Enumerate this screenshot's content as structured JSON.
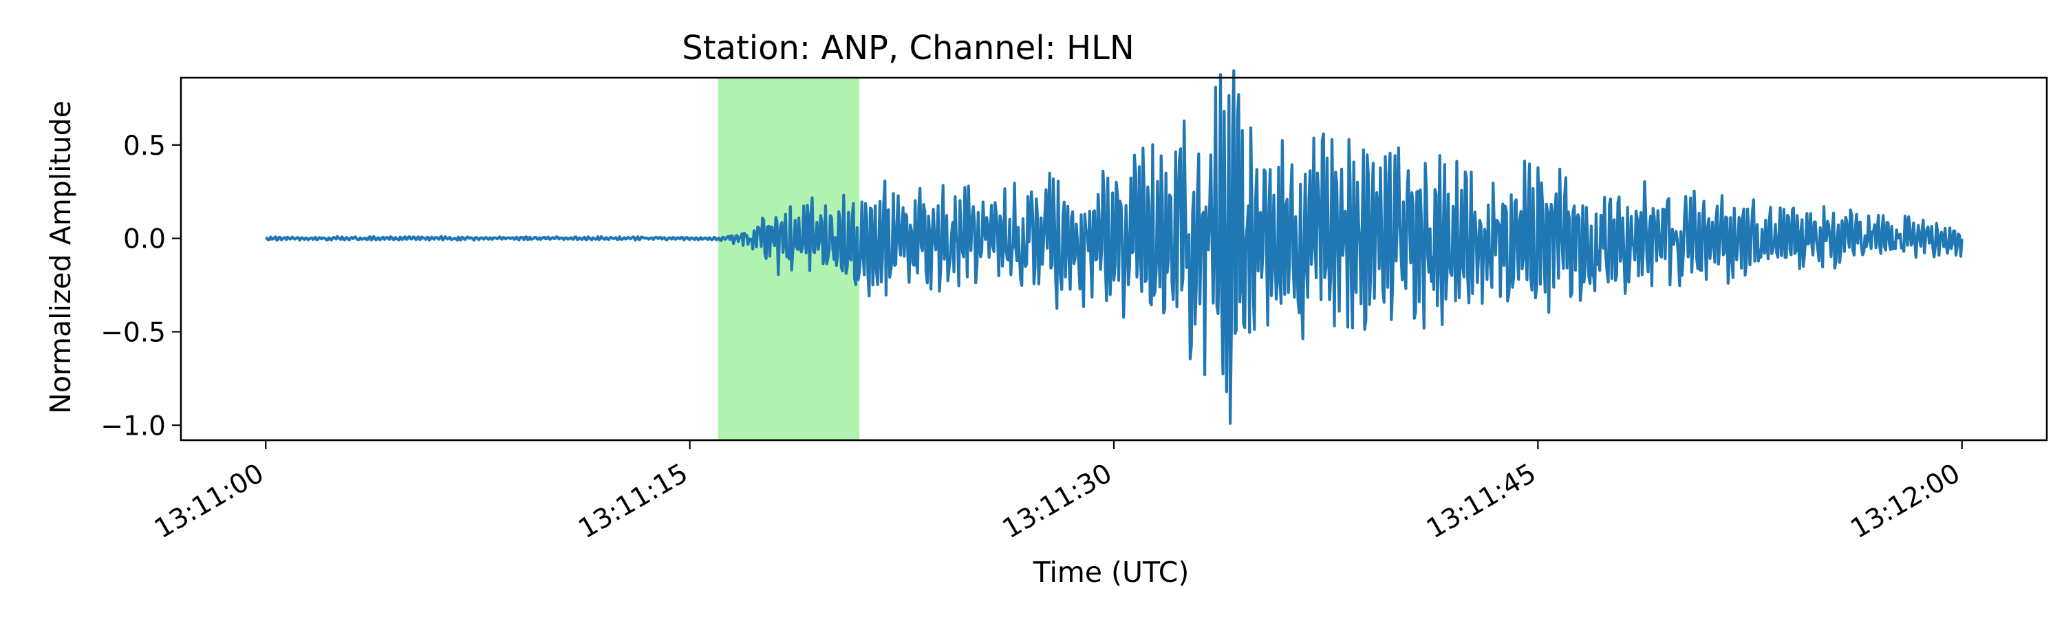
{
  "chart_data": {
    "type": "line",
    "title": "Station: ANP, Channel: HLN",
    "xlabel": "Time (UTC)",
    "ylabel": "Normalized Amplitude",
    "x_range": [
      "13:11:00",
      "13:12:00"
    ],
    "xlim": [
      "13:10:57",
      "13:12:03"
    ],
    "ylim": [
      -1.08,
      0.86
    ],
    "x_ticks": [
      "13:11:00",
      "13:11:15",
      "13:11:30",
      "13:11:45",
      "13:12:00"
    ],
    "y_ticks": [
      0.5,
      0.0,
      -0.5,
      -1.0
    ],
    "y_tick_labels": [
      "0.5",
      "0.0",
      "−0.5",
      "−1.0"
    ],
    "grid": false,
    "legend": "none",
    "highlight_window": {
      "start": "13:11:16",
      "end": "13:11:21",
      "color": "#b2f2b0"
    },
    "series": [
      {
        "color": "#1f77b4",
        "envelope": [
          {
            "t": "13:11:00",
            "amp": 0.01
          },
          {
            "t": "13:11:16",
            "amp": 0.01
          },
          {
            "t": "13:11:17",
            "amp": 0.05
          },
          {
            "t": "13:11:18",
            "amp": 0.2
          },
          {
            "t": "13:11:20",
            "amp": 0.25
          },
          {
            "t": "13:11:21",
            "amp": 0.35
          },
          {
            "t": "13:11:25",
            "amp": 0.32
          },
          {
            "t": "13:11:29",
            "amp": 0.4
          },
          {
            "t": "13:11:31",
            "amp": 0.55
          },
          {
            "t": "13:11:33",
            "amp": 0.75
          },
          {
            "t": "13:11:34",
            "amp": 1.0
          },
          {
            "t": "13:11:35",
            "amp": 0.6
          },
          {
            "t": "13:11:40",
            "amp": 0.55
          },
          {
            "t": "13:11:45",
            "amp": 0.42
          },
          {
            "t": "13:11:50",
            "amp": 0.28
          },
          {
            "t": "13:11:55",
            "amp": 0.18
          },
          {
            "t": "13:12:00",
            "amp": 0.1
          }
        ],
        "peaks": [
          {
            "t": "13:11:34.1",
            "value": -0.99
          },
          {
            "t": "13:11:34.4",
            "value": 0.77
          },
          {
            "t": "13:11:33.9",
            "value": 0.68
          }
        ]
      }
    ]
  }
}
